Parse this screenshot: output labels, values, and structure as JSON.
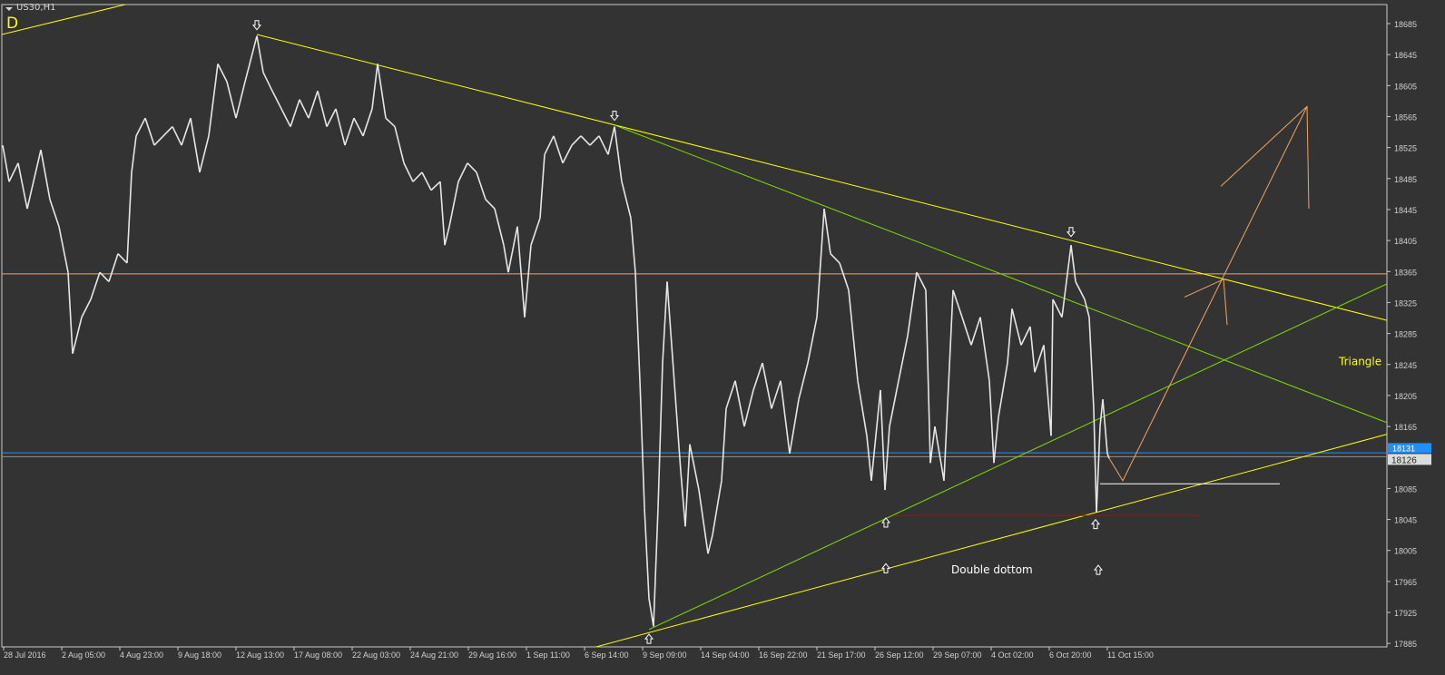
{
  "window": {
    "symbol_timeframe": "US30,H1",
    "corner_label": "D"
  },
  "colors": {
    "background": "#333333",
    "grid_axis": "#c8c8c8",
    "price": "#e6e6e6",
    "yellow": "#ffff00",
    "green": "#7fdc00",
    "orange": "#f4a460",
    "blue": "#1e90ff",
    "red": "#cc0000",
    "white": "#ffffff"
  },
  "chart_data": {
    "type": "line",
    "title": "US30,H1",
    "x_tick_labels": [
      "28 Jul 2016",
      "2 Aug 05:00",
      "4 Aug 23:00",
      "9 Aug 18:00",
      "12 Aug 13:00",
      "17 Aug 08:00",
      "22 Aug 03:00",
      "24 Aug 21:00",
      "29 Aug 16:00",
      "1 Sep 11:00",
      "6 Sep 14:00",
      "9 Sep 09:00",
      "14 Sep 04:00",
      "16 Sep 22:00",
      "21 Sep 17:00",
      "26 Sep 12:00",
      "29 Sep 07:00",
      "4 Oct 02:00",
      "6 Oct 20:00",
      "11 Oct 15:00"
    ],
    "y_ticks": [
      18685,
      18645,
      18605,
      18565,
      18525,
      18485,
      18445,
      18405,
      18365,
      18325,
      18285,
      18245,
      18205,
      18165,
      18085,
      18045,
      18005,
      17965,
      17925,
      17885
    ],
    "ylim": [
      17880,
      18710
    ],
    "grid": false,
    "ask_price": "18131",
    "bid_price": "18126",
    "series": [
      {
        "values": [
          [
            0,
            18528
          ],
          [
            7,
            18481
          ],
          [
            17,
            18505
          ],
          [
            27,
            18446
          ],
          [
            42,
            18522
          ],
          [
            52,
            18458
          ],
          [
            62,
            18423
          ],
          [
            72,
            18364
          ],
          [
            77,
            18259
          ],
          [
            87,
            18306
          ],
          [
            97,
            18329
          ],
          [
            107,
            18364
          ],
          [
            117,
            18352
          ],
          [
            127,
            18388
          ],
          [
            137,
            18376
          ],
          [
            142,
            18493
          ],
          [
            147,
            18540
          ],
          [
            157,
            18563
          ],
          [
            167,
            18528
          ],
          [
            177,
            18540
          ],
          [
            187,
            18552
          ],
          [
            197,
            18528
          ],
          [
            207,
            18563
          ],
          [
            217,
            18493
          ],
          [
            227,
            18540
          ],
          [
            237,
            18633
          ],
          [
            247,
            18610
          ],
          [
            257,
            18563
          ],
          [
            267,
            18610
          ],
          [
            280,
            18669
          ],
          [
            287,
            18622
          ],
          [
            297,
            18598
          ],
          [
            307,
            18575
          ],
          [
            317,
            18552
          ],
          [
            327,
            18587
          ],
          [
            337,
            18563
          ],
          [
            347,
            18598
          ],
          [
            357,
            18552
          ],
          [
            367,
            18575
          ],
          [
            377,
            18528
          ],
          [
            387,
            18563
          ],
          [
            397,
            18540
          ],
          [
            407,
            18575
          ],
          [
            413,
            18633
          ],
          [
            422,
            18563
          ],
          [
            432,
            18552
          ],
          [
            442,
            18505
          ],
          [
            452,
            18481
          ],
          [
            462,
            18493
          ],
          [
            472,
            18470
          ],
          [
            482,
            18481
          ],
          [
            487,
            18399
          ],
          [
            492,
            18423
          ],
          [
            502,
            18481
          ],
          [
            512,
            18505
          ],
          [
            522,
            18493
          ],
          [
            532,
            18458
          ],
          [
            542,
            18446
          ],
          [
            552,
            18399
          ],
          [
            557,
            18364
          ],
          [
            567,
            18423
          ],
          [
            575,
            18306
          ],
          [
            582,
            18399
          ],
          [
            592,
            18434
          ],
          [
            597,
            18516
          ],
          [
            607,
            18540
          ],
          [
            617,
            18505
          ],
          [
            627,
            18528
          ],
          [
            637,
            18540
          ],
          [
            647,
            18528
          ],
          [
            657,
            18540
          ],
          [
            667,
            18516
          ],
          [
            674,
            18552
          ],
          [
            682,
            18481
          ],
          [
            692,
            18434
          ],
          [
            697,
            18364
          ],
          [
            702,
            18224
          ],
          [
            707,
            18060
          ],
          [
            712,
            17943
          ],
          [
            717,
            17907
          ],
          [
            722,
            18060
          ],
          [
            727,
            18247
          ],
          [
            732,
            18352
          ],
          [
            737,
            18270
          ],
          [
            742,
            18188
          ],
          [
            747,
            18107
          ],
          [
            752,
            18036
          ],
          [
            757,
            18142
          ],
          [
            767,
            18083
          ],
          [
            777,
            18001
          ],
          [
            782,
            18025
          ],
          [
            792,
            18095
          ],
          [
            797,
            18188
          ],
          [
            807,
            18224
          ],
          [
            817,
            18165
          ],
          [
            827,
            18212
          ],
          [
            837,
            18247
          ],
          [
            847,
            18188
          ],
          [
            857,
            18224
          ],
          [
            867,
            18130
          ],
          [
            877,
            18200
          ],
          [
            887,
            18247
          ],
          [
            897,
            18306
          ],
          [
            905,
            18446
          ],
          [
            912,
            18388
          ],
          [
            922,
            18376
          ],
          [
            932,
            18341
          ],
          [
            937,
            18282
          ],
          [
            942,
            18224
          ],
          [
            952,
            18153
          ],
          [
            957,
            18095
          ],
          [
            967,
            18212
          ],
          [
            972,
            18083
          ],
          [
            977,
            18165
          ],
          [
            987,
            18224
          ],
          [
            997,
            18282
          ],
          [
            1007,
            18364
          ],
          [
            1017,
            18341
          ],
          [
            1022,
            18118
          ],
          [
            1027,
            18165
          ],
          [
            1037,
            18095
          ],
          [
            1047,
            18341
          ],
          [
            1057,
            18306
          ],
          [
            1067,
            18270
          ],
          [
            1077,
            18306
          ],
          [
            1087,
            18224
          ],
          [
            1092,
            18118
          ],
          [
            1097,
            18177
          ],
          [
            1107,
            18247
          ],
          [
            1112,
            18317
          ],
          [
            1122,
            18270
          ],
          [
            1132,
            18294
          ],
          [
            1137,
            18235
          ],
          [
            1147,
            18270
          ],
          [
            1155,
            18153
          ],
          [
            1157,
            18329
          ],
          [
            1167,
            18306
          ],
          [
            1177,
            18399
          ],
          [
            1182,
            18352
          ],
          [
            1192,
            18329
          ],
          [
            1197,
            18306
          ],
          [
            1202,
            18188
          ],
          [
            1205,
            18054
          ],
          [
            1209,
            18165
          ],
          [
            1212,
            18200
          ],
          [
            1217,
            18130
          ],
          [
            1219,
            18124
          ]
        ]
      }
    ],
    "drawings": {
      "yellow_lines": [
        [
          [
            -1,
            18671
          ],
          [
            140,
            18711
          ]
        ],
        [
          [
            280,
            18671
          ],
          [
            1525,
            18302
          ]
        ],
        [
          [
            652,
            17880
          ],
          [
            1525,
            18155
          ]
        ]
      ],
      "green_lines": [
        [
          [
            674,
            18554
          ],
          [
            1525,
            18170
          ]
        ],
        [
          [
            712,
            17903
          ],
          [
            1525,
            18349
          ]
        ]
      ],
      "orange_hline": 18362,
      "white_segment": [
        [
          1209,
          18091
        ],
        [
          1407,
          18091
        ]
      ],
      "red_segment": [
        [
          982,
          18050
        ],
        [
          1319,
          18050
        ]
      ],
      "orange_paths": [
        [
          [
            1219,
            18124
          ],
          [
            1234,
            18095
          ],
          [
            1437,
            18578
          ]
        ],
        [
          [
            1342,
            18475
          ],
          [
            1437,
            18578
          ],
          [
            1439,
            18446
          ]
        ],
        [
          [
            1302,
            18332
          ],
          [
            1345,
            18355
          ],
          [
            1349,
            18296
          ]
        ]
      ],
      "down_arrows": [
        [
          280,
          18683
        ],
        [
          674,
          18566
        ],
        [
          1177,
          18416
        ]
      ],
      "up_arrows": [
        [
          712,
          17891
        ],
        [
          973,
          18041
        ],
        [
          973,
          17982
        ],
        [
          1204,
          18039
        ],
        [
          1207,
          17980
        ]
      ]
    },
    "annotations": [
      {
        "text": "Triangle",
        "x": 1472,
        "y": 18249,
        "color": "#ffff00"
      },
      {
        "text": "Double dottom",
        "x": 1045,
        "y": 17980,
        "color": "#ffffff"
      }
    ]
  }
}
